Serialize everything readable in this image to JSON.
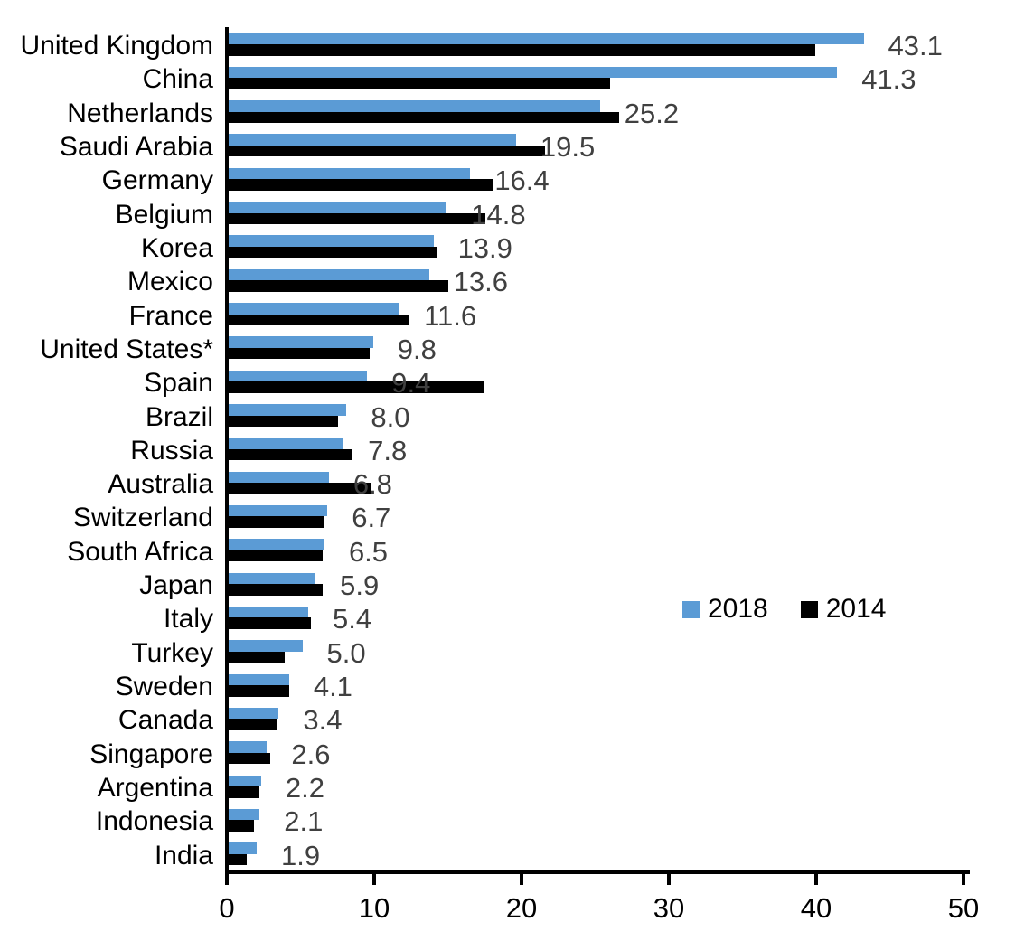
{
  "chart_data": {
    "type": "bar",
    "orientation": "horizontal",
    "title": "",
    "xlabel": "",
    "ylabel": "",
    "xlim": [
      0,
      50
    ],
    "x_ticks": [
      "0",
      "10",
      "20",
      "30",
      "40",
      "50"
    ],
    "grid": "off",
    "categories": [
      "United Kingdom",
      "China",
      "Netherlands",
      "Saudi Arabia",
      "Germany",
      "Belgium",
      "Korea",
      "Mexico",
      "France",
      "United States*",
      "Spain",
      "Brazil",
      "Russia",
      "Australia",
      "Switzerland",
      "South Africa",
      "Japan",
      "Italy",
      "Turkey",
      "Sweden",
      "Canada",
      "Singapore",
      "Argentina",
      "Indonesia",
      "India"
    ],
    "series": [
      {
        "name": "2018",
        "color": "#5B9BD5",
        "values": [
          43.1,
          41.3,
          25.2,
          19.5,
          16.4,
          14.8,
          13.9,
          13.6,
          11.6,
          9.8,
          9.4,
          8.0,
          7.8,
          6.8,
          6.7,
          6.5,
          5.9,
          5.4,
          5.0,
          4.1,
          3.4,
          2.6,
          2.2,
          2.1,
          1.9
        ]
      },
      {
        "name": "2014",
        "color": "#000000",
        "values": [
          39.8,
          25.9,
          26.5,
          21.5,
          18.0,
          17.4,
          14.2,
          14.9,
          12.2,
          9.6,
          17.3,
          7.4,
          8.4,
          9.7,
          6.5,
          6.4,
          6.4,
          5.6,
          3.8,
          4.1,
          3.3,
          2.8,
          2.1,
          1.7,
          1.2
        ]
      }
    ],
    "data_labels": {
      "series": "2018",
      "color": "#404040",
      "values": [
        "43.1",
        "41.3",
        "25.2",
        "19.5",
        "16.4",
        "14.8",
        "13.9",
        "13.6",
        "11.6",
        "9.8",
        "9.4",
        "8.0",
        "7.8",
        "6.8",
        "6.7",
        "6.5",
        "5.9",
        "5.4",
        "5.0",
        "4.1",
        "3.4",
        "2.6",
        "2.2",
        "2.1",
        "1.9"
      ]
    },
    "legend": {
      "position": "middle-right",
      "entries": [
        {
          "label": "2018",
          "color": "#5B9BD5"
        },
        {
          "label": "2014",
          "color": "#000000"
        }
      ]
    }
  }
}
